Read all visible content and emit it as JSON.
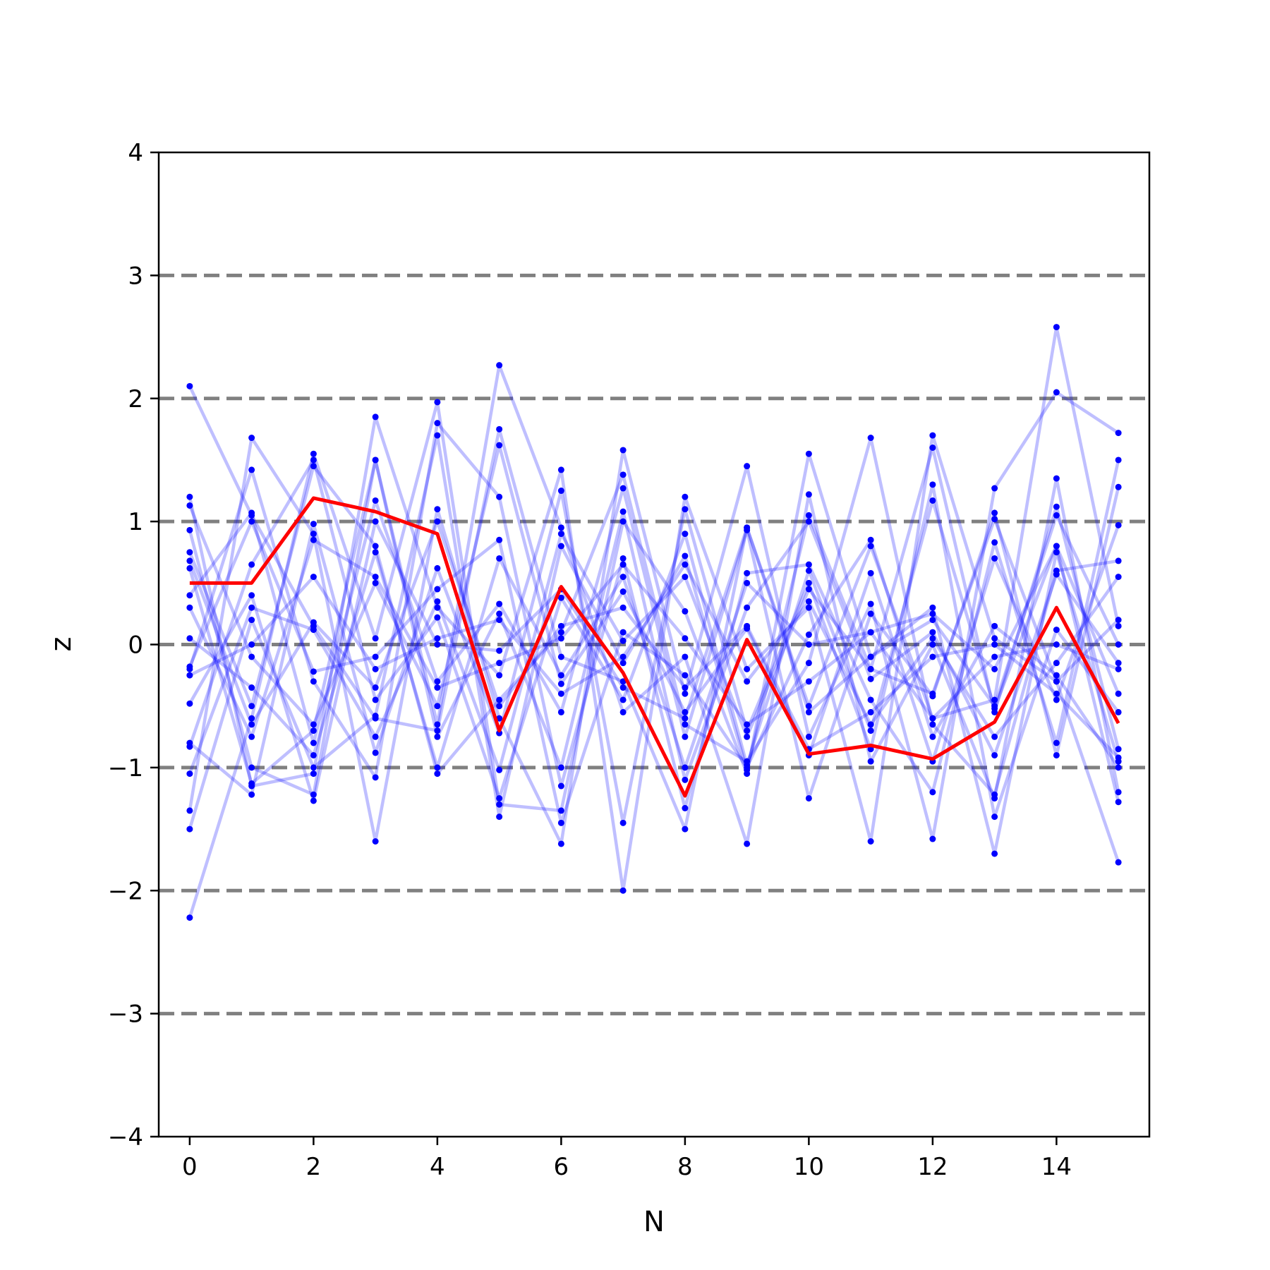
{
  "chart_data": {
    "type": "line",
    "title": "",
    "xlabel": "N",
    "ylabel": "z",
    "xlim": [
      -0.5,
      15.5
    ],
    "ylim": [
      -4,
      4
    ],
    "xticks": [
      0,
      2,
      4,
      6,
      8,
      10,
      12,
      14
    ],
    "yticks": [
      -4,
      -3,
      -2,
      -1,
      0,
      1,
      2,
      3,
      4
    ],
    "ytick_labels": [
      "−4",
      "−3",
      "−2",
      "−1",
      "0",
      "1",
      "2",
      "3",
      "4"
    ],
    "grid": false,
    "reference_lines": [
      -3,
      -2,
      -1,
      0,
      1,
      2,
      3
    ],
    "x": [
      0,
      1,
      2,
      3,
      4,
      5,
      6,
      7,
      8,
      9,
      10,
      11,
      12,
      13,
      14,
      15
    ],
    "highlight_series": {
      "values": [
        0.5,
        0.5,
        1.19,
        1.08,
        0.9,
        -0.7,
        0.47,
        -0.23,
        -1.23,
        0.04,
        -0.89,
        -0.82,
        -0.93,
        -0.63,
        0.3,
        -0.64
      ]
    },
    "series": [
      {
        "values": [
          2.1,
          1.05,
          0.15,
          -0.6,
          -0.7,
          1.75,
          -0.1,
          -0.3,
          -1.5,
          0.95,
          -0.5,
          0.8,
          -0.6,
          -0.45,
          2.58,
          0.15
        ]
      },
      {
        "values": [
          -2.22,
          -0.6,
          1.55,
          0.05,
          1.97,
          -1.3,
          -1.35,
          1.0,
          0.27,
          -1.05,
          1.55,
          -0.1,
          0.3,
          -1.7,
          0.75,
          -0.95
        ]
      },
      {
        "values": [
          1.2,
          -1.15,
          -1.05,
          1.85,
          0.3,
          -0.25,
          1.42,
          -2.0,
          1.2,
          -0.2,
          0.3,
          -1.6,
          1.7,
          0.05,
          -0.3,
          -1.77
        ]
      },
      {
        "values": [
          -1.35,
          1.68,
          0.9,
          -1.6,
          1.1,
          -0.6,
          -1.62,
          1.58,
          -0.4,
          1.45,
          -0.75,
          0.33,
          -1.58,
          1.27,
          2.05,
          1.72
        ]
      },
      {
        "values": [
          0.93,
          -1.0,
          -1.22,
          1.5,
          -0.65,
          2.27,
          0.95,
          -0.55,
          -0.1,
          -1.62,
          1.22,
          -0.95,
          0.0,
          -1.25,
          1.35,
          -1.2
        ]
      },
      {
        "values": [
          -0.2,
          1.42,
          -0.3,
          -1.08,
          1.8,
          1.2,
          -1.15,
          0.7,
          -1.33,
          0.58,
          0.65,
          -0.45,
          -1.2,
          0.83,
          -0.8,
          1.5
        ]
      },
      {
        "values": [
          0.75,
          -0.5,
          1.45,
          0.8,
          -1.05,
          -0.45,
          0.1,
          1.38,
          -0.65,
          -0.95,
          -0.15,
          1.68,
          -0.65,
          -1.22,
          0.6,
          0.68
        ]
      },
      {
        "values": [
          -1.5,
          0.2,
          -1.0,
          -0.58,
          1.7,
          -1.4,
          0.8,
          -0.15,
          0.72,
          -1.02,
          1.05,
          -0.2,
          1.6,
          -0.55,
          1.12,
          -0.85
        ]
      },
      {
        "values": [
          0.4,
          1.07,
          -0.8,
          1.17,
          -0.3,
          0.33,
          -0.55,
          1.27,
          -0.75,
          0.93,
          -1.25,
          0.25,
          -0.42,
          1.07,
          -0.9,
          1.28
        ]
      },
      {
        "values": [
          -0.8,
          -1.22,
          0.98,
          -0.88,
          0.62,
          -0.72,
          1.25,
          -1.45,
          1.1,
          -0.7,
          0.5,
          -0.85,
          1.3,
          -1.4,
          0.12,
          -0.55
        ]
      },
      {
        "values": [
          1.13,
          -0.1,
          -0.65,
          0.5,
          -0.5,
          1.62,
          -0.32,
          0.43,
          -0.55,
          0.13,
          -0.9,
          0.58,
          -0.95,
          0.7,
          -0.45,
          0.97
        ]
      },
      {
        "values": [
          -0.83,
          0.65,
          1.5,
          -0.45,
          0.22,
          -1.25,
          0.38,
          -0.45,
          0.9,
          -0.98,
          0.6,
          -0.7,
          1.17,
          -0.52,
          0.8,
          -1.28
        ]
      },
      {
        "values": [
          0.62,
          -1.13,
          -0.7,
          1.5,
          -0.75,
          0.25,
          -1.0,
          1.08,
          -1.1,
          0.3,
          1.0,
          -0.28,
          0.1,
          -0.9,
          0.57,
          -0.15
        ]
      },
      {
        "values": [
          -0.18,
          1.0,
          -0.22,
          -0.1,
          0.45,
          0.85,
          -1.45,
          0.1,
          -0.25,
          -1.0,
          0.08,
          0.85,
          -0.75,
          0.15,
          -0.25,
          -1.0
        ]
      },
      {
        "values": [
          0.3,
          -0.75,
          0.85,
          0.55,
          -0.35,
          -0.15,
          0.05,
          0.65,
          0.05,
          -0.65,
          -0.3,
          0.1,
          0.25,
          -0.2,
          0.8,
          -0.4
        ]
      },
      {
        "values": [
          -0.48,
          0.4,
          -1.27,
          1.0,
          0.0,
          -0.05,
          0.45,
          -0.35,
          -0.6,
          0.95,
          -0.55,
          -0.1,
          0.2,
          -0.5,
          1.05,
          0.0
        ]
      },
      {
        "values": [
          0.68,
          -0.65,
          0.18,
          -0.35,
          1.0,
          -0.5,
          0.15,
          0.3,
          -0.35,
          0.15,
          -0.85,
          -0.55,
          -0.1,
          0.0,
          -0.4,
          -0.92
        ]
      },
      {
        "values": [
          -1.05,
          0.3,
          0.12,
          -0.75,
          0.35,
          -1.02,
          0.9,
          0.03,
          0.55,
          -0.75,
          0.45,
          -0.2,
          -0.4,
          1.02,
          -0.3,
          0.2
        ]
      },
      {
        "values": [
          0.05,
          -0.35,
          -0.9,
          0.75,
          -1.0,
          0.7,
          -0.25,
          0.55,
          -1.0,
          0.5,
          0.0,
          0.1,
          -0.6,
          -0.1,
          0.0,
          -0.2
        ]
      },
      {
        "values": [
          -0.25,
          0.0,
          0.55,
          -0.2,
          0.05,
          0.2,
          -0.4,
          -0.1,
          0.65,
          -0.3,
          0.35,
          -0.65,
          0.05,
          -0.75,
          -0.15,
          0.55
        ]
      }
    ],
    "colors": {
      "samples_line": "#0000ff",
      "samples_marker": "#0000ff",
      "highlight_line": "#ff0000",
      "reference_line": "#808080",
      "axes": "#000000"
    }
  }
}
